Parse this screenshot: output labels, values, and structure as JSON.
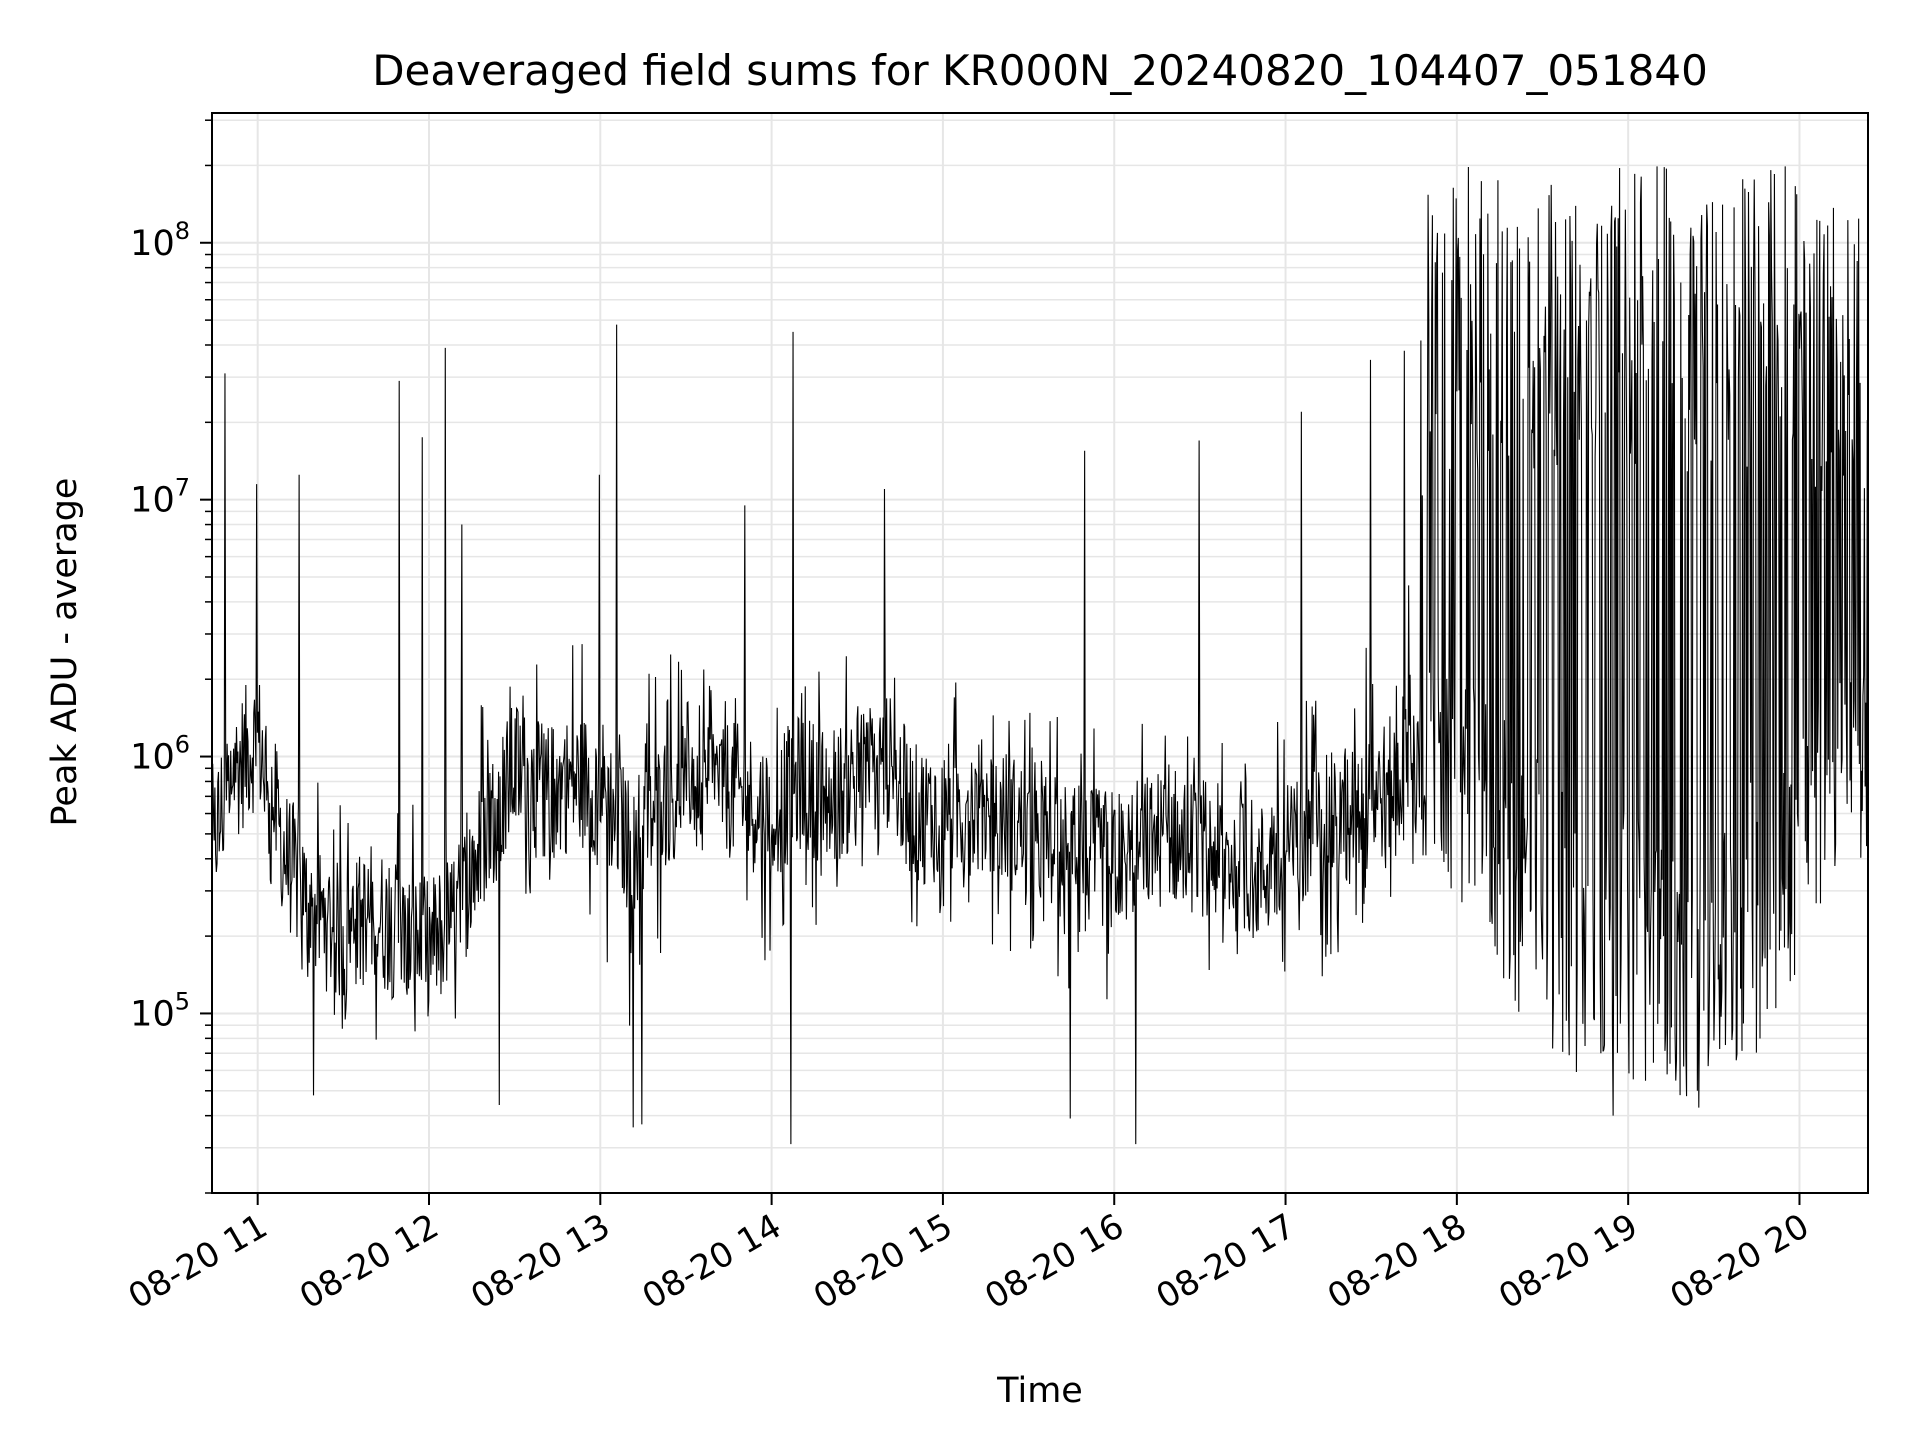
{
  "chart_data": {
    "type": "line",
    "title": "Deaveraged field sums for KR000N_20240820_104407_051840",
    "xlabel": "Time",
    "ylabel": "Peak ADU - average",
    "xlim": [
      "2024-08-20 10:44",
      "2024-08-20 20:24"
    ],
    "ylim": [
      20000,
      320000000
    ],
    "yscale": "log",
    "grid": true,
    "line_color": "#000000",
    "grid_color": "#e6e6e6",
    "xticks": [
      {
        "value": "2024-08-20 11:00",
        "label": "08-20 11"
      },
      {
        "value": "2024-08-20 12:00",
        "label": "08-20 12"
      },
      {
        "value": "2024-08-20 13:00",
        "label": "08-20 13"
      },
      {
        "value": "2024-08-20 14:00",
        "label": "08-20 14"
      },
      {
        "value": "2024-08-20 15:00",
        "label": "08-20 15"
      },
      {
        "value": "2024-08-20 16:00",
        "label": "08-20 16"
      },
      {
        "value": "2024-08-20 17:00",
        "label": "08-20 17"
      },
      {
        "value": "2024-08-20 18:00",
        "label": "08-20 18"
      },
      {
        "value": "2024-08-20 19:00",
        "label": "08-20 19"
      },
      {
        "value": "2024-08-20 20:00",
        "label": "08-20 20"
      }
    ],
    "yticks": [
      {
        "value": 100000,
        "base": "10",
        "exp": "5"
      },
      {
        "value": 1000000,
        "base": "10",
        "exp": "6"
      },
      {
        "value": 10000000,
        "base": "10",
        "exp": "7"
      },
      {
        "value": 100000000,
        "base": "10",
        "exp": "8"
      }
    ],
    "series": [
      {
        "x": [
          "2024-08-20 10:45",
          "2024-08-20 10:50",
          "2024-08-20 11:00",
          "2024-08-20 11:10",
          "2024-08-20 11:20",
          "2024-08-20 11:30",
          "2024-08-20 11:40",
          "2024-08-20 11:50",
          "2024-08-20 12:00",
          "2024-08-20 12:10",
          "2024-08-20 12:20",
          "2024-08-20 12:30",
          "2024-08-20 12:40",
          "2024-08-20 12:50",
          "2024-08-20 13:00",
          "2024-08-20 13:10",
          "2024-08-20 13:20",
          "2024-08-20 13:30",
          "2024-08-20 13:40",
          "2024-08-20 13:50",
          "2024-08-20 14:00",
          "2024-08-20 14:10",
          "2024-08-20 14:20",
          "2024-08-20 14:30",
          "2024-08-20 14:40",
          "2024-08-20 14:50",
          "2024-08-20 15:00",
          "2024-08-20 15:10",
          "2024-08-20 15:20",
          "2024-08-20 15:30",
          "2024-08-20 15:40",
          "2024-08-20 15:50",
          "2024-08-20 16:00",
          "2024-08-20 16:10",
          "2024-08-20 16:20",
          "2024-08-20 16:30",
          "2024-08-20 16:40",
          "2024-08-20 16:50",
          "2024-08-20 17:00",
          "2024-08-20 17:10",
          "2024-08-20 17:20",
          "2024-08-20 17:30",
          "2024-08-20 17:40",
          "2024-08-20 17:50",
          "2024-08-20 18:00",
          "2024-08-20 18:10",
          "2024-08-20 18:20",
          "2024-08-20 18:30",
          "2024-08-20 18:40",
          "2024-08-20 18:50",
          "2024-08-20 19:00",
          "2024-08-20 19:10",
          "2024-08-20 19:20",
          "2024-08-20 19:30",
          "2024-08-20 19:40",
          "2024-08-20 19:50",
          "2024-08-20 20:00",
          "2024-08-20 20:10",
          "2024-08-20 20:20"
        ],
        "base": [
          500000,
          800000,
          1200000,
          400000,
          250000,
          200000,
          250000,
          200000,
          180000,
          250000,
          500000,
          900000,
          700000,
          800000,
          800000,
          450000,
          600000,
          900000,
          800000,
          700000,
          600000,
          800000,
          700000,
          800000,
          1000000,
          600000,
          600000,
          650000,
          600000,
          500000,
          450000,
          400000,
          400000,
          450000,
          500000,
          450000,
          400000,
          350000,
          400000,
          500000,
          600000,
          700000,
          800000,
          900000,
          800000,
          700000,
          500000,
          400000,
          300000,
          250000,
          250000,
          200000,
          150000,
          200000,
          300000,
          400000,
          600000,
          800000,
          900000
        ],
        "low": [
          300000,
          400000,
          500000,
          150000,
          100000,
          80000,
          80000,
          70000,
          70000,
          90000,
          200000,
          350000,
          200000,
          200000,
          150000,
          80000,
          150000,
          300000,
          250000,
          200000,
          150000,
          250000,
          200000,
          250000,
          350000,
          200000,
          200000,
          200000,
          180000,
          150000,
          120000,
          100000,
          100000,
          120000,
          150000,
          120000,
          100000,
          90000,
          100000,
          120000,
          150000,
          200000,
          300000,
          400000,
          250000,
          200000,
          100000,
          70000,
          60000,
          55000,
          55000,
          50000,
          45000,
          50000,
          60000,
          80000,
          150000,
          300000,
          400000
        ],
        "high": [
          3000000,
          2000000,
          3000000,
          1000000,
          800000,
          800000,
          1000000,
          800000,
          700000,
          1000000,
          2000000,
          3000000,
          2500000,
          3000000,
          3000000,
          2000000,
          2500000,
          3000000,
          2500000,
          2500000,
          2000000,
          2500000,
          2500000,
          2500000,
          3000000,
          2500000,
          2000000,
          2000000,
          2000000,
          1500000,
          1500000,
          1500000,
          1500000,
          1500000,
          1800000,
          1500000,
          1500000,
          1200000,
          1500000,
          2000000,
          2500000,
          3000000,
          3000000,
          180000000,
          200000000,
          200000000,
          200000000,
          200000000,
          200000000,
          200000000,
          200000000,
          200000000,
          200000000,
          200000000,
          200000000,
          200000000,
          200000000,
          150000000,
          150000000
        ]
      }
    ],
    "spikes": [
      {
        "x": "2024-08-20 10:49",
        "y": 31000000
      },
      {
        "x": "2024-08-20 11:00",
        "y": 11500000
      },
      {
        "x": "2024-08-20 11:15",
        "y": 12500000
      },
      {
        "x": "2024-08-20 11:50",
        "y": 29000000
      },
      {
        "x": "2024-08-20 11:58",
        "y": 17500000
      },
      {
        "x": "2024-08-20 12:06",
        "y": 39000000
      },
      {
        "x": "2024-08-20 12:12",
        "y": 8000000
      },
      {
        "x": "2024-08-20 13:00",
        "y": 12500000
      },
      {
        "x": "2024-08-20 13:06",
        "y": 48000000
      },
      {
        "x": "2024-08-20 13:51",
        "y": 9500000
      },
      {
        "x": "2024-08-20 14:08",
        "y": 45000000
      },
      {
        "x": "2024-08-20 14:40",
        "y": 11000000
      },
      {
        "x": "2024-08-20 15:50",
        "y": 15500000
      },
      {
        "x": "2024-08-20 16:30",
        "y": 17000000
      },
      {
        "x": "2024-08-20 17:06",
        "y": 22000000
      },
      {
        "x": "2024-08-20 17:30",
        "y": 35000000
      },
      {
        "x": "2024-08-20 17:42",
        "y": 38000000
      }
    ],
    "dips": [
      {
        "x": "2024-08-20 11:20",
        "y": 48000
      },
      {
        "x": "2024-08-20 12:25",
        "y": 44000
      },
      {
        "x": "2024-08-20 13:12",
        "y": 36000
      },
      {
        "x": "2024-08-20 13:15",
        "y": 37000
      },
      {
        "x": "2024-08-20 14:07",
        "y": 31000
      },
      {
        "x": "2024-08-20 15:45",
        "y": 39000
      },
      {
        "x": "2024-08-20 16:08",
        "y": 31000
      },
      {
        "x": "2024-08-20 18:55",
        "y": 40000
      },
      {
        "x": "2024-08-20 19:25",
        "y": 43000
      }
    ]
  }
}
